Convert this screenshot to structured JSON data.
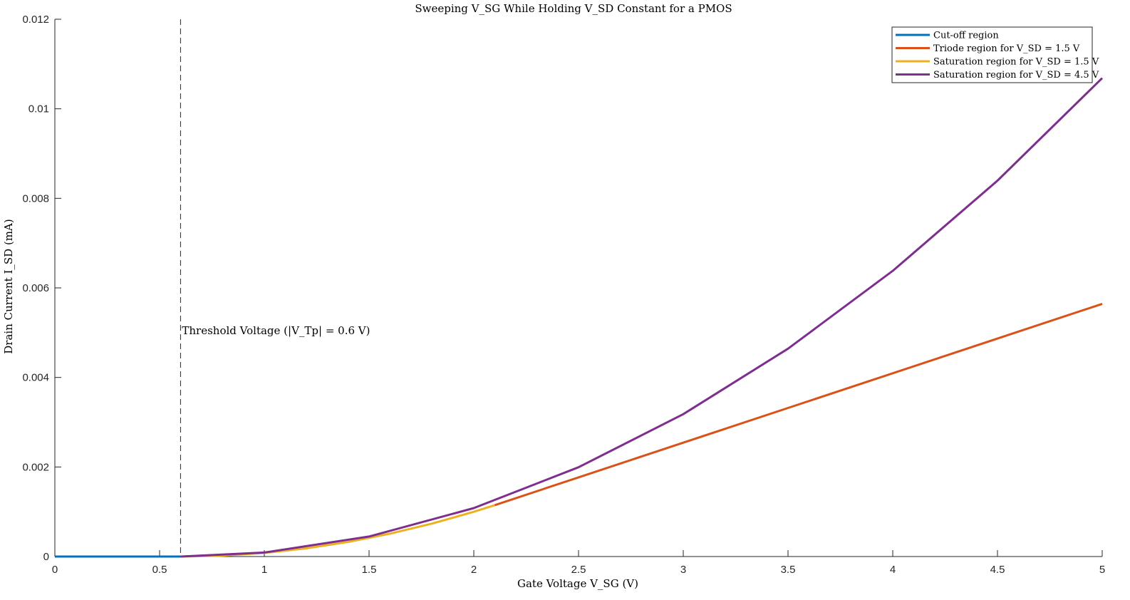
{
  "chart_data": {
    "type": "line",
    "title": "Sweeping V_SG While Holding V_SD Constant for a PMOS",
    "xlabel": "Gate Voltage V_SG (V)",
    "ylabel": "Drain Current I_SD (mA)",
    "xlim": [
      0,
      5
    ],
    "ylim": [
      0,
      0.012
    ],
    "xticks": [
      0,
      0.5,
      1,
      1.5,
      2,
      2.5,
      3,
      3.5,
      4,
      4.5,
      5
    ],
    "xtick_labels": [
      "0",
      "0.5",
      "1",
      "1.5",
      "2",
      "2.5",
      "3",
      "3.5",
      "4",
      "4.5",
      "5"
    ],
    "yticks": [
      0,
      0.002,
      0.004,
      0.006,
      0.008,
      0.01,
      0.012
    ],
    "ytick_labels": [
      "0",
      "0.002",
      "0.004",
      "0.006",
      "0.008",
      "0.01",
      "0.012"
    ],
    "grid": false,
    "legend_position": "top-right",
    "threshold": {
      "x": 0.6,
      "label": "Threshold Voltage (|V_Tp| = 0.6 V)"
    },
    "series": [
      {
        "name": "Cut-off region",
        "color": "#0072BD",
        "x": [
          0,
          0.6
        ],
        "y": [
          0,
          0
        ]
      },
      {
        "name": "Triode region for V_SD = 1.5 V",
        "color": "#D95319",
        "x": [
          2.1,
          2.5,
          3,
          3.5,
          4,
          4.5,
          5
        ],
        "y": [
          0.001148,
          0.001768,
          0.002543,
          0.003318,
          0.004093,
          0.004868,
          0.005643
        ]
      },
      {
        "name": "Saturation region for V_SD = 1.5 V",
        "color": "#EDB120",
        "x": [
          0.6,
          0.8,
          1,
          1.2,
          1.4,
          1.6,
          1.8,
          2,
          2.1
        ],
        "y": [
          0,
          2.04e-05,
          8.16e-05,
          0.0001837,
          0.0003265,
          0.0005101,
          0.0007346,
          0.0009998,
          0.001148
        ]
      },
      {
        "name": "Saturation region for V_SD = 4.5 V",
        "color": "#7E2F8E",
        "x": [
          0.6,
          1,
          1.5,
          2,
          2.5,
          3,
          3.5,
          4,
          4.5,
          5
        ],
        "y": [
          0,
          8.84e-05,
          0.000448,
          0.001083,
          0.001994,
          0.00318,
          0.004643,
          0.006381,
          0.008395,
          0.010685
        ]
      }
    ]
  }
}
